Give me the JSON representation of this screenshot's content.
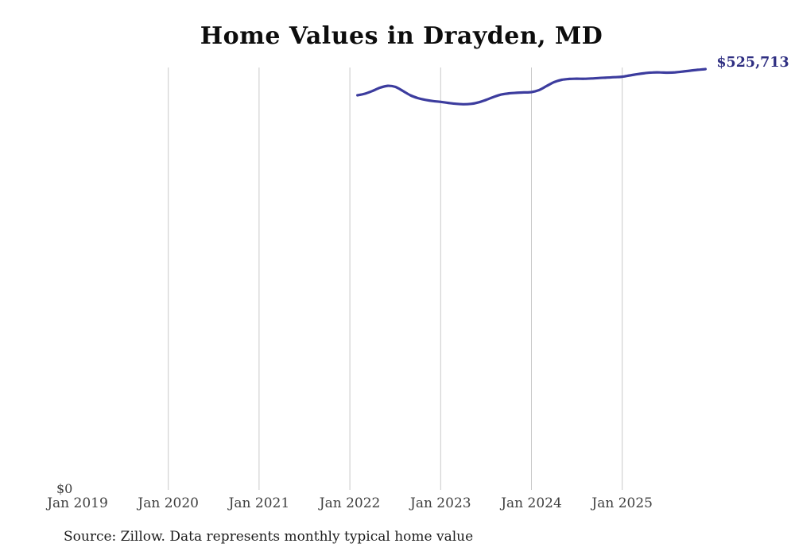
{
  "title": "Home Values in Drayden, MD",
  "source": "Source: Zillow. Data represents monthly typical home value",
  "colors": {
    "line": "#3c3c9e",
    "end_label": "#2f2f82",
    "gridline": "#c9c9c9",
    "tick_label": "#3f3f3f",
    "title": "#0d0d0d"
  },
  "chart_data": {
    "type": "line",
    "title": "Home Values in Drayden, MD",
    "grid": "vertical",
    "legend": false,
    "end_value": 525713,
    "end_value_label": "$525,713",
    "y_axis": {
      "min": 0,
      "zero_label": "$0",
      "ylim": [
        0,
        560000
      ]
    },
    "x_axis": {
      "ticks": [
        {
          "label": "Jan 2019",
          "year": 2019,
          "gridline": false
        },
        {
          "label": "Jan 2020",
          "year": 2020,
          "gridline": true
        },
        {
          "label": "Jan 2021",
          "year": 2021,
          "gridline": true
        },
        {
          "label": "Jan 2022",
          "year": 2022,
          "gridline": true
        },
        {
          "label": "Jan 2023",
          "year": 2023,
          "gridline": true
        },
        {
          "label": "Jan 2024",
          "year": 2024,
          "gridline": true
        },
        {
          "label": "Jan 2025",
          "year": 2025,
          "gridline": true
        }
      ]
    },
    "series": [
      {
        "name": "Monthly typical home value",
        "start": "2022-02",
        "frequency": "monthly",
        "values": [
          493000,
          495000,
          498500,
          502500,
          504800,
          503500,
          498500,
          493000,
          489500,
          487300,
          485800,
          484800,
          483500,
          482400,
          481900,
          482300,
          484200,
          487300,
          491000,
          493900,
          495400,
          496100,
          496600,
          497000,
          499500,
          504500,
          509500,
          512300,
          513400,
          513700,
          513600,
          514000,
          514600,
          515100,
          515600,
          516200,
          517800,
          519400,
          520700,
          521500,
          521600,
          521300,
          521700,
          522600,
          523700,
          524800,
          525713
        ]
      }
    ]
  }
}
